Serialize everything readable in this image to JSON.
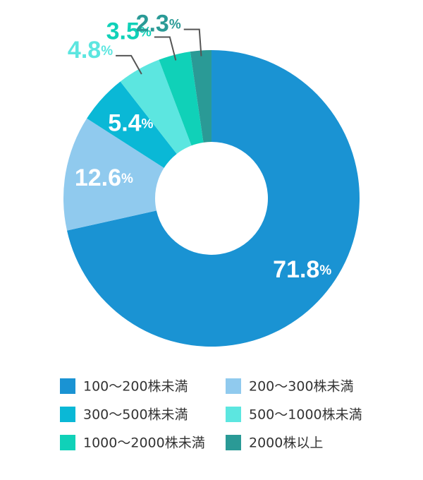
{
  "chart_data": {
    "type": "donut",
    "categories": [
      "100〜200株未満",
      "200〜300株未満",
      "300〜500株未満",
      "500〜1000株未満",
      "1000〜2000株未満",
      "2000株以上"
    ],
    "values": [
      71.8,
      12.6,
      5.4,
      4.8,
      3.5,
      2.3
    ],
    "value_labels": [
      "71.8%",
      "12.6%",
      "5.4%",
      "4.8%",
      "3.5%",
      "2.3%"
    ],
    "colors": [
      "#1a93d3",
      "#90caee",
      "#0ab8d6",
      "#5ce6e0",
      "#10d1b8",
      "#2a9a96"
    ]
  }
}
